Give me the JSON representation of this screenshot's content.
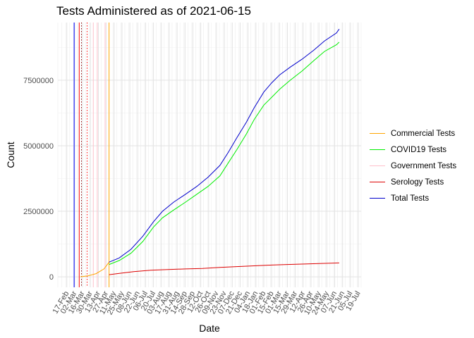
{
  "chart_data": {
    "type": "line",
    "title": "Tests Administered as of 2021-06-15",
    "xlabel": "Date",
    "ylabel": "Count",
    "ylim": [
      -400000,
      9700000
    ],
    "yticks": [
      0,
      2500000,
      5000000,
      7500000
    ],
    "ytick_labels": [
      "0",
      "2500000",
      "5000000",
      "7500000"
    ],
    "xticks": [
      {
        "date": "2020-02-17",
        "label": "17-Feb"
      },
      {
        "date": "2020-03-02",
        "label": "02-Mar"
      },
      {
        "date": "2020-03-16",
        "label": "16-Mar"
      },
      {
        "date": "2020-03-30",
        "label": "30-Mar"
      },
      {
        "date": "2020-04-13",
        "label": "13-Apr"
      },
      {
        "date": "2020-04-27",
        "label": "27-Apr"
      },
      {
        "date": "2020-05-11",
        "label": "11-May"
      },
      {
        "date": "2020-05-25",
        "label": "25-May"
      },
      {
        "date": "2020-06-08",
        "label": "08-Jun"
      },
      {
        "date": "2020-06-22",
        "label": "22-Jun"
      },
      {
        "date": "2020-07-06",
        "label": "06-Jul"
      },
      {
        "date": "2020-07-20",
        "label": "20-Jul"
      },
      {
        "date": "2020-08-03",
        "label": "03-Aug"
      },
      {
        "date": "2020-08-17",
        "label": "17-Aug"
      },
      {
        "date": "2020-08-31",
        "label": "31-Aug"
      },
      {
        "date": "2020-09-14",
        "label": "14-Sep"
      },
      {
        "date": "2020-09-28",
        "label": "28-Sep"
      },
      {
        "date": "2020-10-12",
        "label": "12-Oct"
      },
      {
        "date": "2020-10-26",
        "label": "26-Oct"
      },
      {
        "date": "2020-11-09",
        "label": "09-Nov"
      },
      {
        "date": "2020-11-23",
        "label": "23-Nov"
      },
      {
        "date": "2020-12-07",
        "label": "07-Dec"
      },
      {
        "date": "2020-12-21",
        "label": "21-Dec"
      },
      {
        "date": "2021-01-04",
        "label": "04-Jan"
      },
      {
        "date": "2021-01-18",
        "label": "18-Jan"
      },
      {
        "date": "2021-02-01",
        "label": "01-Feb"
      },
      {
        "date": "2021-02-15",
        "label": "15-Feb"
      },
      {
        "date": "2021-03-01",
        "label": "01-Mar"
      },
      {
        "date": "2021-03-15",
        "label": "15-Mar"
      },
      {
        "date": "2021-03-29",
        "label": "29-Mar"
      },
      {
        "date": "2021-04-12",
        "label": "12-Apr"
      },
      {
        "date": "2021-04-26",
        "label": "26-Apr"
      },
      {
        "date": "2021-05-10",
        "label": "10-May"
      },
      {
        "date": "2021-05-24",
        "label": "24-May"
      },
      {
        "date": "2021-06-07",
        "label": "07-Jun"
      },
      {
        "date": "2021-06-21",
        "label": "21-Jun"
      },
      {
        "date": "2021-07-05",
        "label": "05-Jul"
      },
      {
        "date": "2021-07-19",
        "label": "19-Jul"
      }
    ],
    "xlim": [
      "2020-02-01",
      "2021-07-24"
    ],
    "grid": true,
    "legend_position": "right",
    "vlines": [
      {
        "date": "2020-03-01",
        "color": "#0000ff",
        "style": "solid"
      },
      {
        "date": "2020-03-10",
        "color": "#ff0000",
        "style": "solid"
      },
      {
        "date": "2020-03-14",
        "color": "#8b0000",
        "style": "dotted"
      },
      {
        "date": "2020-03-24",
        "color": "#ff0000",
        "style": "dotted"
      },
      {
        "date": "2020-04-04",
        "color": "#ffc0cb",
        "style": "solid"
      },
      {
        "date": "2020-04-11",
        "color": "#ffc0cb",
        "style": "solid"
      },
      {
        "date": "2020-04-25",
        "color": "#ffc0cb",
        "style": "solid"
      },
      {
        "date": "2020-05-02",
        "color": "#ffa500",
        "style": "solid"
      }
    ],
    "series": [
      {
        "name": "Commercial Tests",
        "color": "#ffa500",
        "points": [
          [
            "2020-03-12",
            0
          ],
          [
            "2020-03-26",
            40000
          ],
          [
            "2020-04-09",
            120000
          ],
          [
            "2020-04-23",
            300000
          ],
          [
            "2020-05-02",
            560000
          ]
        ]
      },
      {
        "name": "COVID19 Tests",
        "color": "#00ee00",
        "points": [
          [
            "2020-05-02",
            470000
          ],
          [
            "2020-05-20",
            620000
          ],
          [
            "2020-06-10",
            900000
          ],
          [
            "2020-07-01",
            1350000
          ],
          [
            "2020-07-20",
            1900000
          ],
          [
            "2020-08-05",
            2250000
          ],
          [
            "2020-08-25",
            2550000
          ],
          [
            "2020-09-15",
            2850000
          ],
          [
            "2020-10-05",
            3150000
          ],
          [
            "2020-10-25",
            3450000
          ],
          [
            "2020-11-15",
            3850000
          ],
          [
            "2020-11-30",
            4350000
          ],
          [
            "2020-12-15",
            4850000
          ],
          [
            "2021-01-01",
            5450000
          ],
          [
            "2021-01-15",
            6000000
          ],
          [
            "2021-02-01",
            6550000
          ],
          [
            "2021-02-15",
            6850000
          ],
          [
            "2021-03-01",
            7150000
          ],
          [
            "2021-03-20",
            7500000
          ],
          [
            "2021-04-10",
            7850000
          ],
          [
            "2021-05-01",
            8250000
          ],
          [
            "2021-05-20",
            8600000
          ],
          [
            "2021-06-10",
            8850000
          ],
          [
            "2021-06-15",
            8950000
          ]
        ]
      },
      {
        "name": "Government Tests",
        "color": "#ffc0cb",
        "points": []
      },
      {
        "name": "Serology Tests",
        "color": "#dd0000",
        "points": [
          [
            "2020-05-02",
            80000
          ],
          [
            "2020-05-20",
            130000
          ],
          [
            "2020-06-15",
            200000
          ],
          [
            "2020-07-15",
            250000
          ],
          [
            "2020-08-15",
            280000
          ],
          [
            "2020-09-15",
            300000
          ],
          [
            "2020-10-15",
            320000
          ],
          [
            "2020-11-15",
            360000
          ],
          [
            "2020-12-15",
            390000
          ],
          [
            "2021-01-15",
            420000
          ],
          [
            "2021-02-15",
            450000
          ],
          [
            "2021-03-15",
            470000
          ],
          [
            "2021-04-15",
            490000
          ],
          [
            "2021-05-15",
            510000
          ],
          [
            "2021-06-15",
            530000
          ]
        ]
      },
      {
        "name": "Total Tests",
        "color": "#0000cc",
        "points": [
          [
            "2020-05-02",
            560000
          ],
          [
            "2020-05-20",
            720000
          ],
          [
            "2020-06-10",
            1050000
          ],
          [
            "2020-07-01",
            1550000
          ],
          [
            "2020-07-20",
            2100000
          ],
          [
            "2020-08-05",
            2500000
          ],
          [
            "2020-08-25",
            2850000
          ],
          [
            "2020-09-15",
            3150000
          ],
          [
            "2020-10-05",
            3450000
          ],
          [
            "2020-10-25",
            3800000
          ],
          [
            "2020-11-15",
            4250000
          ],
          [
            "2020-11-30",
            4750000
          ],
          [
            "2020-12-15",
            5300000
          ],
          [
            "2021-01-01",
            5900000
          ],
          [
            "2021-01-15",
            6450000
          ],
          [
            "2021-02-01",
            7050000
          ],
          [
            "2021-02-15",
            7400000
          ],
          [
            "2021-03-01",
            7700000
          ],
          [
            "2021-03-20",
            8000000
          ],
          [
            "2021-04-10",
            8300000
          ],
          [
            "2021-05-01",
            8650000
          ],
          [
            "2021-05-20",
            9000000
          ],
          [
            "2021-06-10",
            9300000
          ],
          [
            "2021-06-15",
            9450000
          ]
        ]
      }
    ]
  }
}
